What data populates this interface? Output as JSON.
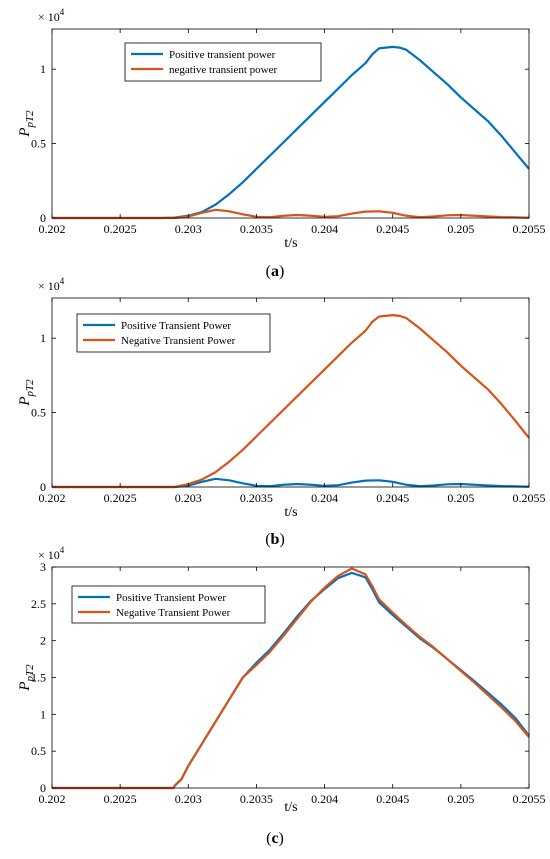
{
  "chart_data": [
    {
      "type": "line",
      "panel_label": "(a)",
      "panel_letter": "a",
      "exponent_label": "× 10",
      "exponent_power": "4",
      "ylabel_main": "P",
      "ylabel_sub": "pT2",
      "xlabel": "t/s",
      "xlim": [
        0.202,
        0.2055
      ],
      "ylim": [
        0,
        12700
      ],
      "xticks": [
        0.202,
        0.2025,
        0.203,
        0.2035,
        0.204,
        0.2045,
        0.205,
        0.2055
      ],
      "xtick_labels": [
        "0.202",
        "0.2025",
        "0.203",
        "0.2035",
        "0.204",
        "0.2045",
        "0.205",
        "0.2055"
      ],
      "yticks": [
        0,
        5000,
        10000
      ],
      "ytick_labels": [
        "0",
        "0.5",
        "1"
      ],
      "legend_position": "top-center",
      "colors": {
        "blue": "#0072BD",
        "orange": "#D95319"
      },
      "series": [
        {
          "name": "Positive transient power",
          "color": "#0072BD",
          "x": [
            0.202,
            0.2028,
            0.2029,
            0.203,
            0.2031,
            0.2032,
            0.2033,
            0.2034,
            0.2035,
            0.2036,
            0.2037,
            0.2038,
            0.2039,
            0.204,
            0.2041,
            0.2042,
            0.2043,
            0.20435,
            0.2044,
            0.2045,
            0.20455,
            0.2046,
            0.2047,
            0.2048,
            0.2049,
            0.205,
            0.2051,
            0.2052,
            0.2053,
            0.2054,
            0.2055
          ],
          "y": [
            0,
            0,
            30,
            150,
            400,
            900,
            1600,
            2400,
            3300,
            4200,
            5100,
            6000,
            6900,
            7800,
            8700,
            9600,
            10400,
            11000,
            11400,
            11500,
            11450,
            11300,
            10600,
            9800,
            9000,
            8100,
            7300,
            6500,
            5500,
            4400,
            3300
          ]
        },
        {
          "name": "negative transient power",
          "color": "#D95319",
          "x": [
            0.202,
            0.2029,
            0.203,
            0.2031,
            0.2032,
            0.2033,
            0.2034,
            0.2035,
            0.2036,
            0.2037,
            0.2038,
            0.2039,
            0.204,
            0.2041,
            0.2042,
            0.2043,
            0.2044,
            0.2045,
            0.2046,
            0.2047,
            0.2048,
            0.2049,
            0.205,
            0.2051,
            0.2052,
            0.2053,
            0.2054,
            0.2055
          ],
          "y": [
            0,
            0,
            100,
            350,
            550,
            450,
            250,
            80,
            50,
            150,
            200,
            150,
            80,
            120,
            300,
            430,
            450,
            350,
            150,
            50,
            100,
            180,
            200,
            150,
            100,
            60,
            40,
            20
          ]
        }
      ]
    },
    {
      "type": "line",
      "panel_label": "(b)",
      "panel_letter": "b",
      "exponent_label": "× 10",
      "exponent_power": "4",
      "ylabel_main": "P",
      "ylabel_sub": "pT2",
      "xlabel": "t/s",
      "xlim": [
        0.202,
        0.2055
      ],
      "ylim": [
        0,
        12700
      ],
      "xticks": [
        0.202,
        0.2025,
        0.203,
        0.2035,
        0.204,
        0.2045,
        0.205,
        0.2055
      ],
      "xtick_labels": [
        "0.202",
        "0.2025",
        "0.203",
        "0.2035",
        "0.204",
        "0.2045",
        "0.205",
        "0.2055"
      ],
      "yticks": [
        0,
        5000,
        10000
      ],
      "ytick_labels": [
        "0",
        "0.5",
        "1"
      ],
      "legend_position": "top-left",
      "colors": {
        "blue": "#0072BD",
        "orange": "#D95319"
      },
      "series": [
        {
          "name": "Positive Transient Power",
          "color": "#0072BD",
          "x": [
            0.202,
            0.2029,
            0.203,
            0.2031,
            0.2032,
            0.2033,
            0.2034,
            0.2035,
            0.2036,
            0.2037,
            0.2038,
            0.2039,
            0.204,
            0.2041,
            0.2042,
            0.2043,
            0.2044,
            0.2045,
            0.2046,
            0.2047,
            0.2048,
            0.2049,
            0.205,
            0.2051,
            0.2052,
            0.2053,
            0.2054,
            0.2055
          ],
          "y": [
            0,
            0,
            100,
            350,
            550,
            450,
            250,
            80,
            50,
            150,
            200,
            150,
            80,
            120,
            300,
            430,
            450,
            350,
            150,
            50,
            100,
            180,
            200,
            150,
            100,
            60,
            40,
            20
          ]
        },
        {
          "name": "Negative Transient Power",
          "color": "#D95319",
          "x": [
            0.202,
            0.2029,
            0.203,
            0.2031,
            0.2032,
            0.2033,
            0.2034,
            0.2035,
            0.2036,
            0.2037,
            0.2038,
            0.2039,
            0.204,
            0.2041,
            0.2042,
            0.2043,
            0.20435,
            0.2044,
            0.2045,
            0.20455,
            0.2046,
            0.2047,
            0.2048,
            0.2049,
            0.205,
            0.2051,
            0.2052,
            0.2053,
            0.2054,
            0.2055
          ],
          "y": [
            0,
            0,
            200,
            500,
            1000,
            1700,
            2500,
            3400,
            4300,
            5200,
            6100,
            7000,
            7900,
            8800,
            9700,
            10500,
            11100,
            11450,
            11550,
            11500,
            11350,
            10650,
            9850,
            9050,
            8150,
            7350,
            6550,
            5550,
            4450,
            3300
          ]
        }
      ]
    },
    {
      "type": "line",
      "panel_label": "(c)",
      "panel_letter": "c",
      "exponent_label": "× 10",
      "exponent_power": "4",
      "ylabel_main": "P",
      "ylabel_sub": "pT2",
      "xlabel": "t/s",
      "xlim": [
        0.202,
        0.2055
      ],
      "ylim": [
        0,
        30000
      ],
      "xticks": [
        0.202,
        0.2025,
        0.203,
        0.2035,
        0.204,
        0.2045,
        0.205,
        0.2055
      ],
      "xtick_labels": [
        "0.202",
        "0.2025",
        "0.203",
        "0.2035",
        "0.204",
        "0.2045",
        "0.205",
        "0.2055"
      ],
      "yticks": [
        0,
        5000,
        10000,
        15000,
        20000,
        25000,
        30000
      ],
      "ytick_labels": [
        "0",
        "0.5",
        "1",
        "1.5",
        "2",
        "2.5",
        "3"
      ],
      "legend_position": "top-left",
      "colors": {
        "blue": "#0072BD",
        "orange": "#D95319"
      },
      "series": [
        {
          "name": "Positive Transient Power",
          "color": "#0072BD",
          "x": [
            0.202,
            0.20289,
            0.2029,
            0.20295,
            0.203,
            0.2031,
            0.2032,
            0.2033,
            0.2034,
            0.2035,
            0.2036,
            0.2037,
            0.2038,
            0.2039,
            0.204,
            0.2041,
            0.2042,
            0.2043,
            0.20435,
            0.2044,
            0.2045,
            0.2046,
            0.2047,
            0.2048,
            0.2049,
            0.205,
            0.2051,
            0.2052,
            0.2053,
            0.2054,
            0.2055
          ],
          "y": [
            0,
            0,
            300,
            1200,
            3000,
            6000,
            9000,
            12000,
            15000,
            17000,
            18800,
            21000,
            23300,
            25400,
            27000,
            28500,
            29200,
            28600,
            27000,
            25200,
            23500,
            21900,
            20300,
            19000,
            17500,
            16000,
            14500,
            12900,
            11300,
            9500,
            7100
          ]
        },
        {
          "name": "Negative Transient Power",
          "color": "#D95319",
          "x": [
            0.202,
            0.20289,
            0.2029,
            0.20295,
            0.203,
            0.2031,
            0.2032,
            0.2033,
            0.2034,
            0.2035,
            0.2036,
            0.2037,
            0.2038,
            0.2039,
            0.204,
            0.2041,
            0.2042,
            0.2043,
            0.20435,
            0.2044,
            0.2045,
            0.2046,
            0.2047,
            0.2048,
            0.2049,
            0.205,
            0.2051,
            0.2052,
            0.2053,
            0.2054,
            0.2055
          ],
          "y": [
            0,
            0,
            300,
            1200,
            3000,
            6000,
            9000,
            12000,
            15000,
            16700,
            18500,
            20700,
            23000,
            25300,
            27200,
            28800,
            29800,
            29000,
            27400,
            25600,
            23800,
            22100,
            20500,
            19100,
            17500,
            15900,
            14300,
            12600,
            10900,
            9100,
            6900
          ]
        }
      ]
    }
  ]
}
